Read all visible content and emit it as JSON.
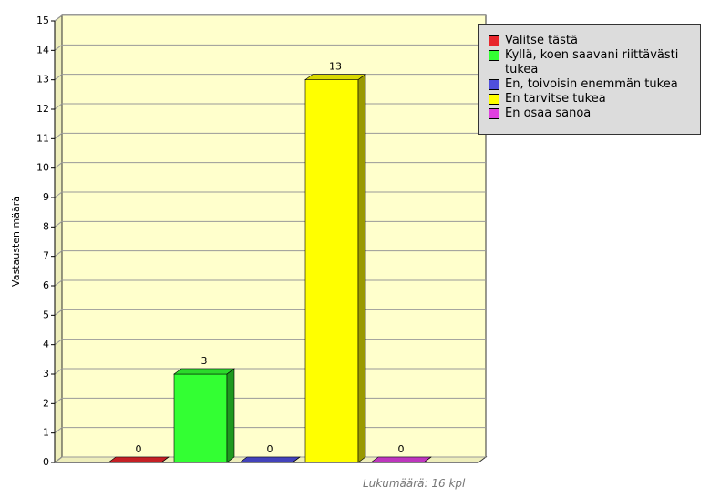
{
  "chart_data": {
    "type": "bar3d",
    "y_label": "Vastausten määrä",
    "footnote": "Lukumäärä: 16 kpl",
    "categories": [
      "Valitse tästä",
      "Kyllä, koen saavani riittävästi tukea",
      "En, toivoisin enemmän tukea",
      "En tarvitse tukea",
      "En osaa sanoa"
    ],
    "values": [
      0,
      3,
      0,
      13,
      0
    ],
    "colors": [
      "#e8262c",
      "#33ff33",
      "#4f4fdc",
      "#ffff00",
      "#e040e0"
    ],
    "ylim": [
      0,
      15
    ],
    "yticks": [
      0,
      1,
      2,
      3,
      4,
      5,
      6,
      7,
      8,
      9,
      10,
      11,
      12,
      13,
      14,
      15
    ],
    "grid": true
  }
}
